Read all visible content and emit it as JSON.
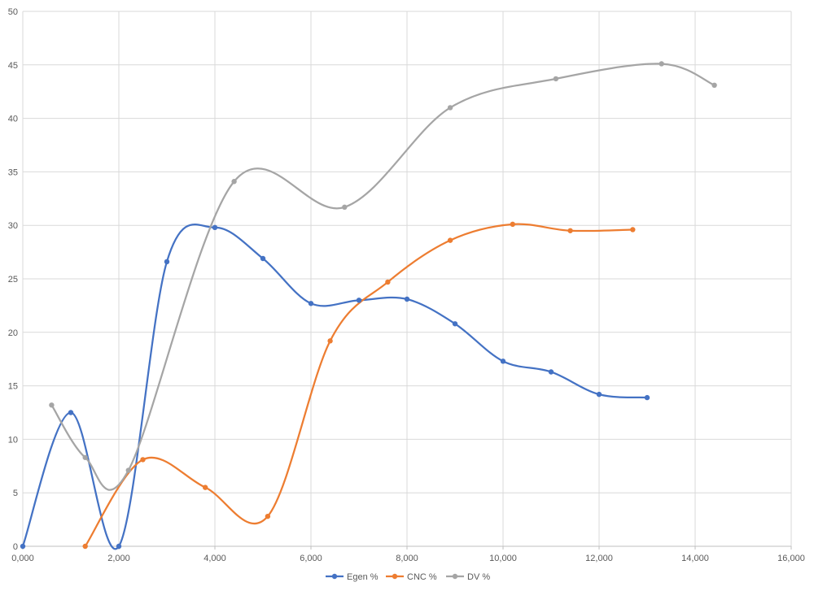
{
  "chart_data": {
    "type": "line",
    "smooth": true,
    "xlim": [
      0,
      16000
    ],
    "ylim": [
      0,
      50
    ],
    "x_ticks": [
      0,
      2000,
      4000,
      6000,
      8000,
      10000,
      12000,
      14000,
      16000
    ],
    "x_tick_labels": [
      "0,000",
      "2,000",
      "4,000",
      "6,000",
      "8,000",
      "10,000",
      "12,000",
      "14,000",
      "16,000"
    ],
    "y_ticks": [
      0,
      5,
      10,
      15,
      20,
      25,
      30,
      35,
      40,
      45,
      50
    ],
    "y_tick_labels": [
      "0",
      "5",
      "10",
      "15",
      "20",
      "25",
      "30",
      "35",
      "40",
      "45",
      "50"
    ],
    "grid": true,
    "legend_position": "bottom",
    "series": [
      {
        "name": "Egen %",
        "color": "#4472c4",
        "x": [
          0,
          1000,
          2000,
          3000,
          4000,
          5000,
          6000,
          7000,
          8000,
          9000,
          10000,
          11000,
          12000,
          13000
        ],
        "y": [
          0,
          12.5,
          0,
          26.6,
          29.8,
          26.9,
          22.7,
          23.0,
          23.1,
          20.8,
          17.3,
          16.3,
          14.2,
          13.9
        ]
      },
      {
        "name": "CNC %",
        "color": "#ed7d31",
        "x": [
          1300,
          2500,
          3800,
          5100,
          6400,
          7600,
          8900,
          10200,
          11400,
          12700
        ],
        "y": [
          0,
          8.1,
          5.5,
          2.8,
          19.2,
          24.7,
          28.6,
          30.1,
          29.5,
          29.6
        ]
      },
      {
        "name": "DV %",
        "color": "#a5a5a5",
        "x": [
          600,
          1300,
          2200,
          4400,
          6700,
          8900,
          11100,
          13300,
          14400
        ],
        "y": [
          13.2,
          8.3,
          7.1,
          34.1,
          31.7,
          41.0,
          43.7,
          45.1,
          43.1
        ]
      }
    ]
  }
}
